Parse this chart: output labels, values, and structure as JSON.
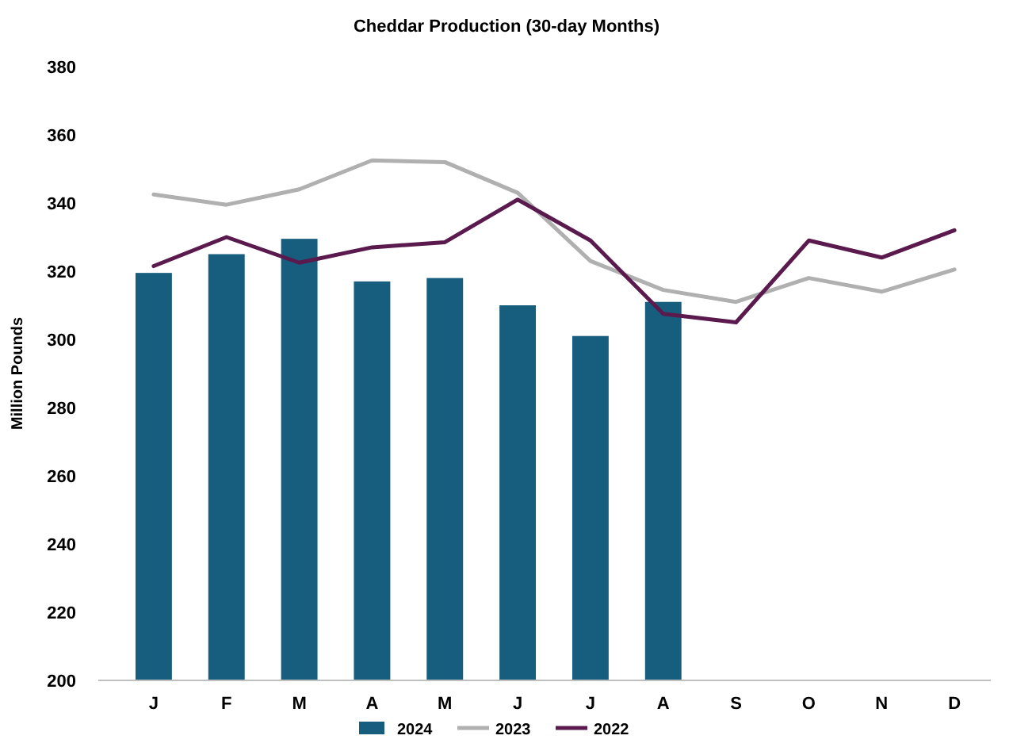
{
  "chart_data": {
    "type": "bar",
    "title": "Cheddar Production (30-day Months)",
    "ylabel": "Million Pounds",
    "categories": [
      "J",
      "F",
      "M",
      "A",
      "M",
      "J",
      "J",
      "A",
      "S",
      "O",
      "N",
      "D"
    ],
    "series": [
      {
        "name": "2024",
        "color": "#175e7e",
        "values": [
          319.5,
          325,
          329.5,
          317,
          318,
          310,
          301,
          311,
          null,
          null,
          null,
          null
        ]
      },
      {
        "name": "2023",
        "type": "line",
        "color": "#b0b0b0",
        "values": [
          342.5,
          339.5,
          344,
          352.5,
          352,
          343,
          323,
          314.5,
          311,
          318,
          314,
          320.5
        ]
      },
      {
        "name": "2022",
        "type": "line",
        "color": "#5a1a4e",
        "values": [
          321.5,
          330,
          322.5,
          327,
          328.5,
          341,
          329,
          307.5,
          305,
          329,
          324,
          332
        ]
      }
    ],
    "ylim": [
      200,
      380
    ],
    "yticks": [
      200,
      220,
      240,
      260,
      280,
      300,
      320,
      340,
      360,
      380
    ],
    "grid": false,
    "legend": "bottom"
  }
}
